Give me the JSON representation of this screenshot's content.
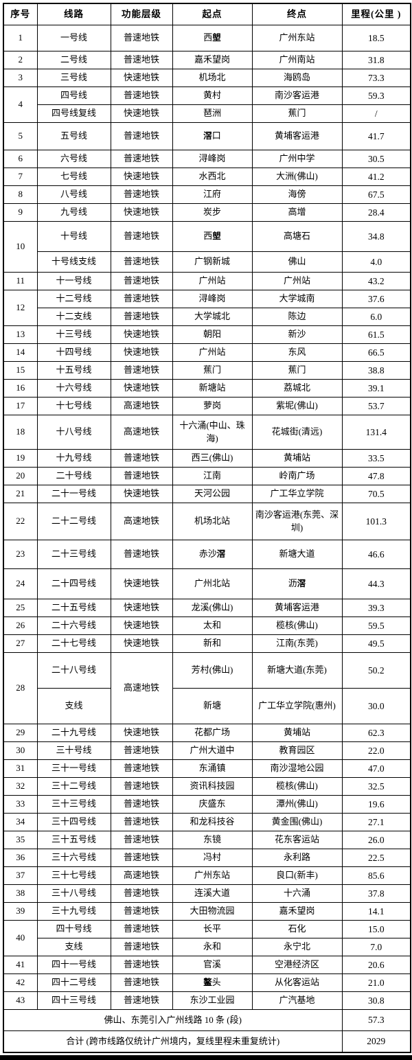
{
  "table": {
    "headers": [
      "序号",
      "线路",
      "功能层级",
      "起点",
      "终点",
      "里程(公里 )"
    ],
    "rows": [
      {
        "no": "1",
        "line": "一号线",
        "level": "普速地铁",
        "start": "西塱",
        "end": "广州东站",
        "km": "18.5"
      },
      {
        "no": "2",
        "line": "二号线",
        "level": "普速地铁",
        "start": "嘉禾望岗",
        "end": "广州南站",
        "km": "31.8"
      },
      {
        "no": "3",
        "line": "三号线",
        "level": "快速地铁",
        "start": "机场北",
        "end": "海鸥岛",
        "km": "73.3"
      },
      {
        "no": "4",
        "no_span": 2,
        "line": "四号线",
        "level": "普速地铁",
        "start": "黄村",
        "end": "南沙客运港",
        "km": "59.3"
      },
      {
        "line": "四号线复线",
        "level": "快速地铁",
        "start": "琶洲",
        "end": "蕉门",
        "km": "/"
      },
      {
        "no": "5",
        "line": "五号线",
        "level": "普速地铁",
        "start": "滘口",
        "end": "黄埔客运港",
        "km": "41.7"
      },
      {
        "no": "6",
        "line": "六号线",
        "level": "普速地铁",
        "start": "浔峰岗",
        "end": "广州中学",
        "km": "30.5"
      },
      {
        "no": "7",
        "line": "七号线",
        "level": "快速地铁",
        "start": "水西北",
        "end": "大洲(佛山)",
        "km": "41.2"
      },
      {
        "no": "8",
        "line": "八号线",
        "level": "普速地铁",
        "start": "江府",
        "end": "海傍",
        "km": "67.5"
      },
      {
        "no": "9",
        "line": "九号线",
        "level": "快速地铁",
        "start": "炭步",
        "end": "高增",
        "km": "28.4"
      },
      {
        "no": "10",
        "no_span": 2,
        "line": "十号线",
        "level": "普速地铁",
        "start": "西塱",
        "end": "高塘石",
        "km": "34.8"
      },
      {
        "line": "十号线支线",
        "level": "普速地铁",
        "start": "广钢新城",
        "end": "佛山",
        "km": "4.0"
      },
      {
        "no": "11",
        "line": "十一号线",
        "level": "普速地铁",
        "start": "广州站",
        "end": "广州站",
        "km": "43.2"
      },
      {
        "no": "12",
        "no_span": 2,
        "line": "十二号线",
        "level": "普速地铁",
        "start": "浔峰岗",
        "end": "大学城南",
        "km": "37.6"
      },
      {
        "line": "十二支线",
        "level": "普速地铁",
        "start": "大学城北",
        "end": "陈边",
        "km": "6.0"
      },
      {
        "no": "13",
        "line": "十三号线",
        "level": "快速地铁",
        "start": "朝阳",
        "end": "新沙",
        "km": "61.5"
      },
      {
        "no": "14",
        "line": "十四号线",
        "level": "快速地铁",
        "start": "广州站",
        "end": "东风",
        "km": "66.5"
      },
      {
        "no": "15",
        "line": "十五号线",
        "level": "普速地铁",
        "start": "蕉门",
        "end": "蕉门",
        "km": "38.8"
      },
      {
        "no": "16",
        "line": "十六号线",
        "level": "快速地铁",
        "start": "新塘站",
        "end": "荔城北",
        "km": "39.1"
      },
      {
        "no": "17",
        "line": "十七号线",
        "level": "高速地铁",
        "start": "萝岗",
        "end": "紫坭(佛山)",
        "km": "53.7"
      },
      {
        "no": "18",
        "line": "十八号线",
        "level": "高速地铁",
        "start": "十六涌(中山、珠海)",
        "end": "花城街(清远)",
        "km": "131.4"
      },
      {
        "no": "19",
        "line": "十九号线",
        "level": "普速地铁",
        "start": "西三(佛山)",
        "end": "黄埔站",
        "km": "33.5"
      },
      {
        "no": "20",
        "line": "二十号线",
        "level": "普速地铁",
        "start": "江南",
        "end": "岭南广场",
        "km": "47.8"
      },
      {
        "no": "21",
        "line": "二十一号线",
        "level": "快速地铁",
        "start": "天河公园",
        "end": "广工华立学院",
        "km": "70.5"
      },
      {
        "no": "22",
        "line": "二十二号线",
        "level": "高速地铁",
        "start": "机场北站",
        "end": "南沙客运港(东莞、深圳)",
        "km": "101.3"
      },
      {
        "no": "23",
        "line": "二十三号线",
        "level": "普速地铁",
        "start": "赤沙滘",
        "end": "新塘大道",
        "km": "46.6"
      },
      {
        "no": "24",
        "line": "二十四号线",
        "level": "快速地铁",
        "start": "广州北站",
        "end": "沥滘",
        "km": "44.3"
      },
      {
        "no": "25",
        "line": "二十五号线",
        "level": "快速地铁",
        "start": "龙溪(佛山)",
        "end": "黄埔客运港",
        "km": "39.3"
      },
      {
        "no": "26",
        "line": "二十六号线",
        "level": "快速地铁",
        "start": "太和",
        "end": "榄核(佛山)",
        "km": "59.5"
      },
      {
        "no": "27",
        "line": "二十七号线",
        "level": "快速地铁",
        "start": "新和",
        "end": "江南(东莞)",
        "km": "49.5"
      },
      {
        "no": "28",
        "no_span": 2,
        "line": "二十八号线",
        "level": "高速地铁",
        "level_span": 2,
        "start": "芳村(佛山)",
        "end": "新塘大道(东莞)",
        "km": "50.2"
      },
      {
        "line": "支线",
        "start": "新塘",
        "end": "广工华立学院(惠州)",
        "km": "30.0"
      },
      {
        "no": "29",
        "line": "二十九号线",
        "level": "快速地铁",
        "start": "花都广场",
        "end": "黄埔站",
        "km": "62.3"
      },
      {
        "no": "30",
        "line": "三十号线",
        "level": "普速地铁",
        "start": "广州大道中",
        "end": "教育园区",
        "km": "22.0"
      },
      {
        "no": "31",
        "line": "三十一号线",
        "level": "普速地铁",
        "start": "东涌镇",
        "end": "南沙湿地公园",
        "km": "47.0"
      },
      {
        "no": "32",
        "line": "三十二号线",
        "level": "普速地铁",
        "start": "资讯科技园",
        "end": "榄核(佛山)",
        "km": "32.5"
      },
      {
        "no": "33",
        "line": "三十三号线",
        "level": "普速地铁",
        "start": "庆盛东",
        "end": "潭州(佛山)",
        "km": "19.6"
      },
      {
        "no": "34",
        "line": "三十四号线",
        "level": "普速地铁",
        "start": "和龙科技谷",
        "end": "黄金围(佛山)",
        "km": "27.1"
      },
      {
        "no": "35",
        "line": "三十五号线",
        "level": "普速地铁",
        "start": "东镜",
        "end": "花东客运站",
        "km": "26.0"
      },
      {
        "no": "36",
        "line": "三十六号线",
        "level": "普速地铁",
        "start": "冯村",
        "end": "永利路",
        "km": "22.5"
      },
      {
        "no": "37",
        "line": "三十七号线",
        "level": "高速地铁",
        "start": "广州东站",
        "end": "良口(新丰)",
        "km": "85.6"
      },
      {
        "no": "38",
        "line": "三十八号线",
        "level": "普速地铁",
        "start": "连溪大道",
        "end": "十六涌",
        "km": "37.8"
      },
      {
        "no": "39",
        "line": "三十九号线",
        "level": "普速地铁",
        "start": "大田物流园",
        "end": "嘉禾望岗",
        "km": "14.1"
      },
      {
        "no": "40",
        "no_span": 2,
        "line": "四十号线",
        "level": "普速地铁",
        "start": "长平",
        "end": "石化",
        "km": "15.0"
      },
      {
        "line": "支线",
        "level": "普速地铁",
        "start": "永和",
        "end": "永宁北",
        "km": "7.0"
      },
      {
        "no": "41",
        "line": "四十一号线",
        "level": "普速地铁",
        "start": "官溪",
        "end": "空港经济区",
        "km": "20.6"
      },
      {
        "no": "42",
        "line": "四十二号线",
        "level": "普速地铁",
        "start": "鳌头",
        "end": "从化客运站",
        "km": "21.0"
      },
      {
        "no": "43",
        "line": "四十三号线",
        "level": "普速地铁",
        "start": "东沙工业园",
        "end": "广汽基地",
        "km": "30.8"
      }
    ],
    "footer": [
      {
        "label": "佛山、东莞引入广州线路 10 条 (段)",
        "km": "57.3"
      },
      {
        "label": "合计 (跨市线路仅统计广州境内，复线里程未重复统计)",
        "km": "2029"
      }
    ]
  }
}
